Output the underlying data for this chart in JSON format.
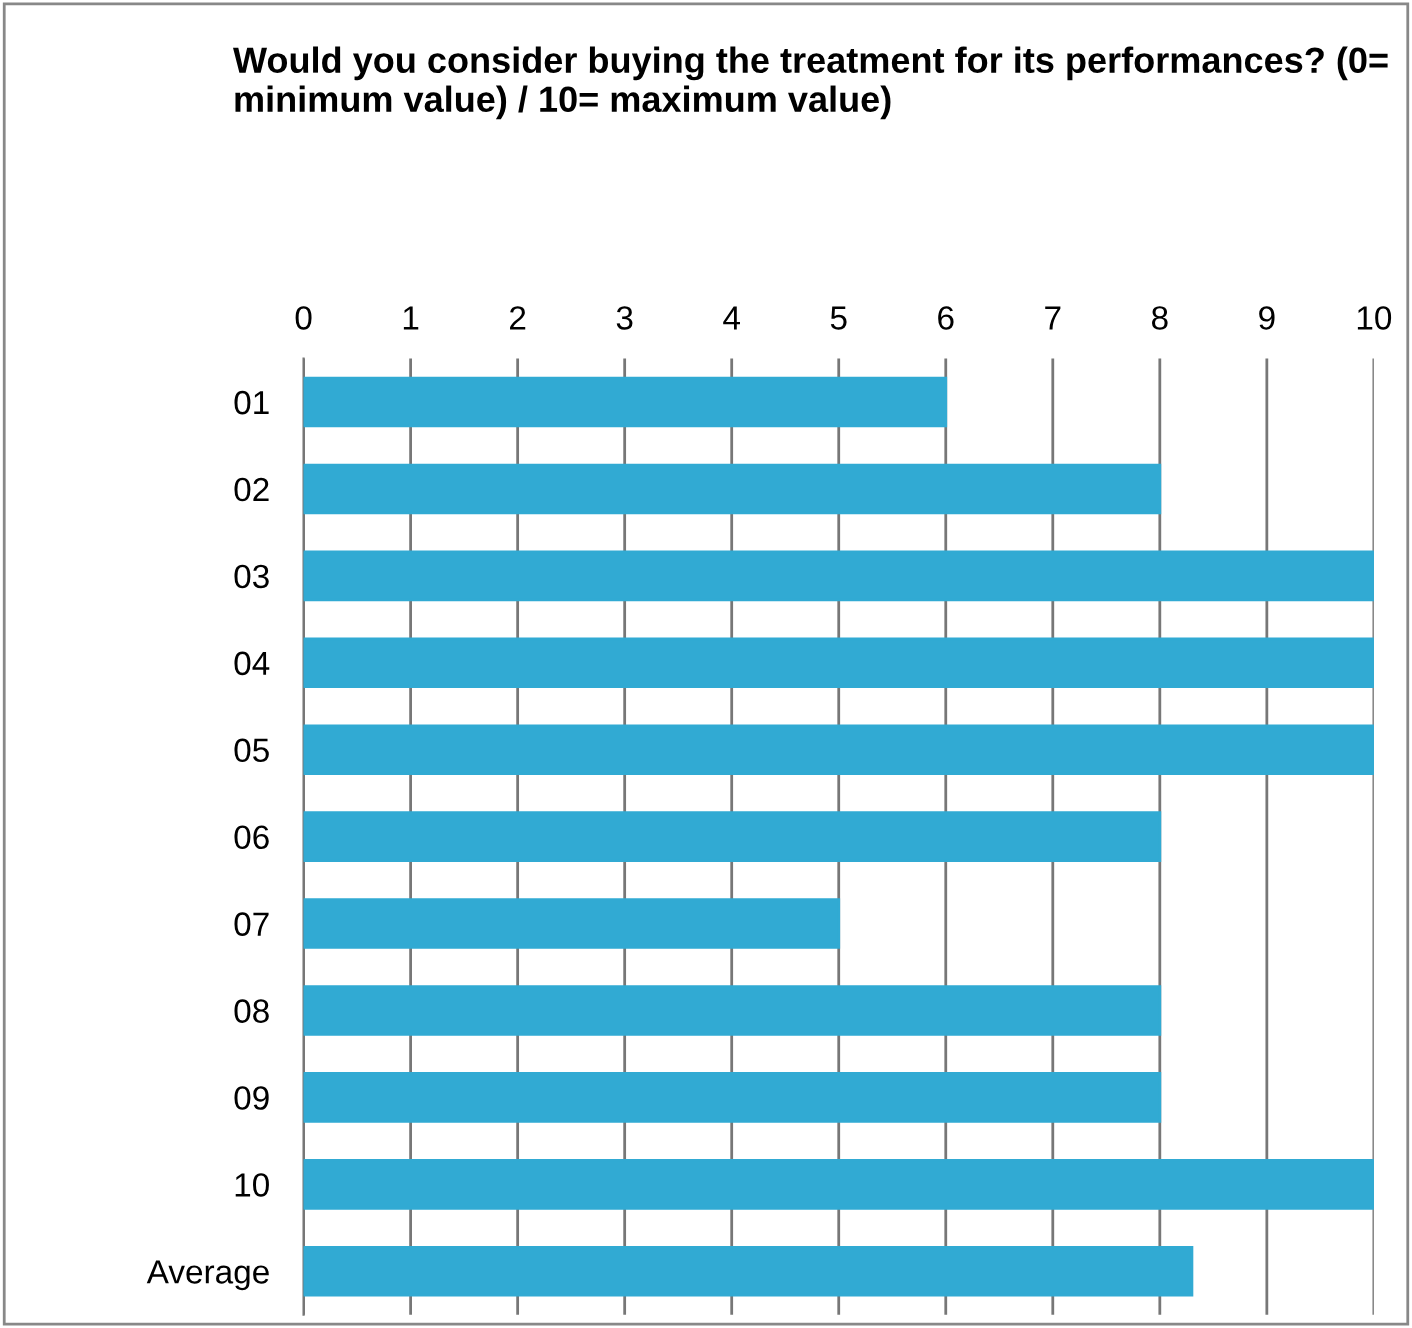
{
  "chart_data": {
    "type": "bar",
    "orientation": "horizontal",
    "title": "Would you consider buying the treatment for its performances? (0= minimum value) / 10= maximum value)",
    "categories": [
      "01",
      "02",
      "03",
      "04",
      "05",
      "06",
      "07",
      "08",
      "09",
      "10",
      "Average"
    ],
    "values": [
      6,
      8,
      10,
      10,
      10,
      8,
      5,
      8,
      8,
      10,
      8.3
    ],
    "color": "#31aad3",
    "xlim": [
      0,
      10
    ],
    "xticks": [
      0,
      1,
      2,
      3,
      4,
      5,
      6,
      7,
      8,
      9,
      10
    ],
    "grid": "x"
  }
}
